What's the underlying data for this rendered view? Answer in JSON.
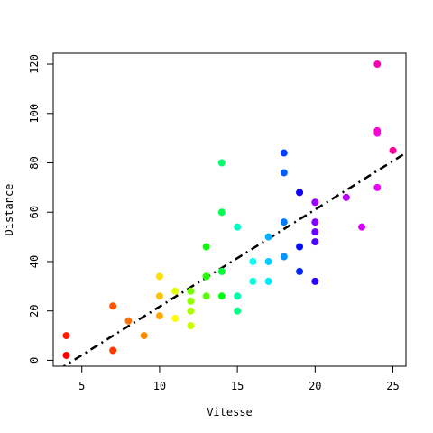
{
  "chart_data": {
    "type": "scatter",
    "title": "",
    "xlabel": "Vitesse",
    "ylabel": "Distance",
    "xlim": [
      3.16,
      25.84
    ],
    "ylim": [
      -2.4,
      124.4
    ],
    "xticks": [
      5,
      10,
      15,
      20,
      25
    ],
    "yticks": [
      0,
      20,
      40,
      60,
      80,
      100,
      120
    ],
    "grid": false,
    "legend": "none",
    "point_colors": "rainbow gradient from red through orange, yellow, green, cyan, blue, violet to magenta, ordered by data index",
    "points": [
      {
        "x": 4,
        "y": 2
      },
      {
        "x": 4,
        "y": 10
      },
      {
        "x": 7,
        "y": 4
      },
      {
        "x": 7,
        "y": 22
      },
      {
        "x": 8,
        "y": 16
      },
      {
        "x": 9,
        "y": 10
      },
      {
        "x": 10,
        "y": 18
      },
      {
        "x": 10,
        "y": 26
      },
      {
        "x": 10,
        "y": 34
      },
      {
        "x": 11,
        "y": 17
      },
      {
        "x": 11,
        "y": 28
      },
      {
        "x": 12,
        "y": 14
      },
      {
        "x": 12,
        "y": 20
      },
      {
        "x": 12,
        "y": 24
      },
      {
        "x": 12,
        "y": 28
      },
      {
        "x": 13,
        "y": 26
      },
      {
        "x": 13,
        "y": 34
      },
      {
        "x": 13,
        "y": 34
      },
      {
        "x": 13,
        "y": 46
      },
      {
        "x": 14,
        "y": 26
      },
      {
        "x": 14,
        "y": 36
      },
      {
        "x": 14,
        "y": 60
      },
      {
        "x": 14,
        "y": 80
      },
      {
        "x": 15,
        "y": 20
      },
      {
        "x": 15,
        "y": 26
      },
      {
        "x": 15,
        "y": 54
      },
      {
        "x": 16,
        "y": 32
      },
      {
        "x": 16,
        "y": 40
      },
      {
        "x": 17,
        "y": 32
      },
      {
        "x": 17,
        "y": 40
      },
      {
        "x": 17,
        "y": 50
      },
      {
        "x": 18,
        "y": 42
      },
      {
        "x": 18,
        "y": 56
      },
      {
        "x": 18,
        "y": 76
      },
      {
        "x": 18,
        "y": 84
      },
      {
        "x": 19,
        "y": 36
      },
      {
        "x": 19,
        "y": 46
      },
      {
        "x": 19,
        "y": 68
      },
      {
        "x": 20,
        "y": 32
      },
      {
        "x": 20,
        "y": 48
      },
      {
        "x": 20,
        "y": 52
      },
      {
        "x": 20,
        "y": 56
      },
      {
        "x": 20,
        "y": 64
      },
      {
        "x": 22,
        "y": 66
      },
      {
        "x": 23,
        "y": 54
      },
      {
        "x": 24,
        "y": 70
      },
      {
        "x": 24,
        "y": 92
      },
      {
        "x": 24,
        "y": 93
      },
      {
        "x": 24,
        "y": 120
      },
      {
        "x": 25,
        "y": 85
      }
    ],
    "regression_line": {
      "intercept": -17.579,
      "slope": 3.932,
      "style": "dot-dash"
    }
  }
}
